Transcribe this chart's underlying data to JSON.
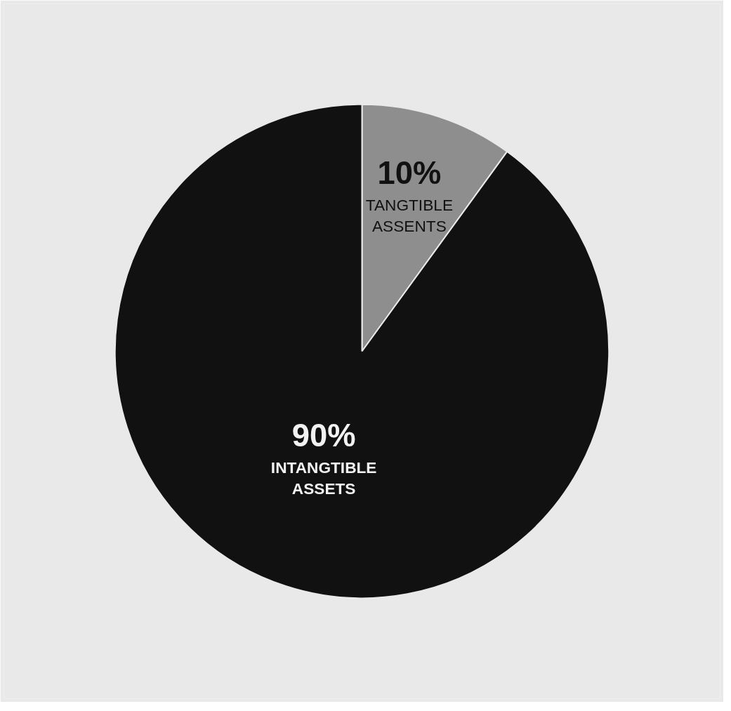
{
  "chart_data": {
    "type": "pie",
    "categories": [
      "TANGTIBLE ASSENTS",
      "INTANGTIBLE ASSETS"
    ],
    "values": [
      10,
      90
    ],
    "colors": [
      "#8e8e8e",
      "#111111"
    ],
    "value_labels": [
      "10%",
      "90%"
    ]
  }
}
